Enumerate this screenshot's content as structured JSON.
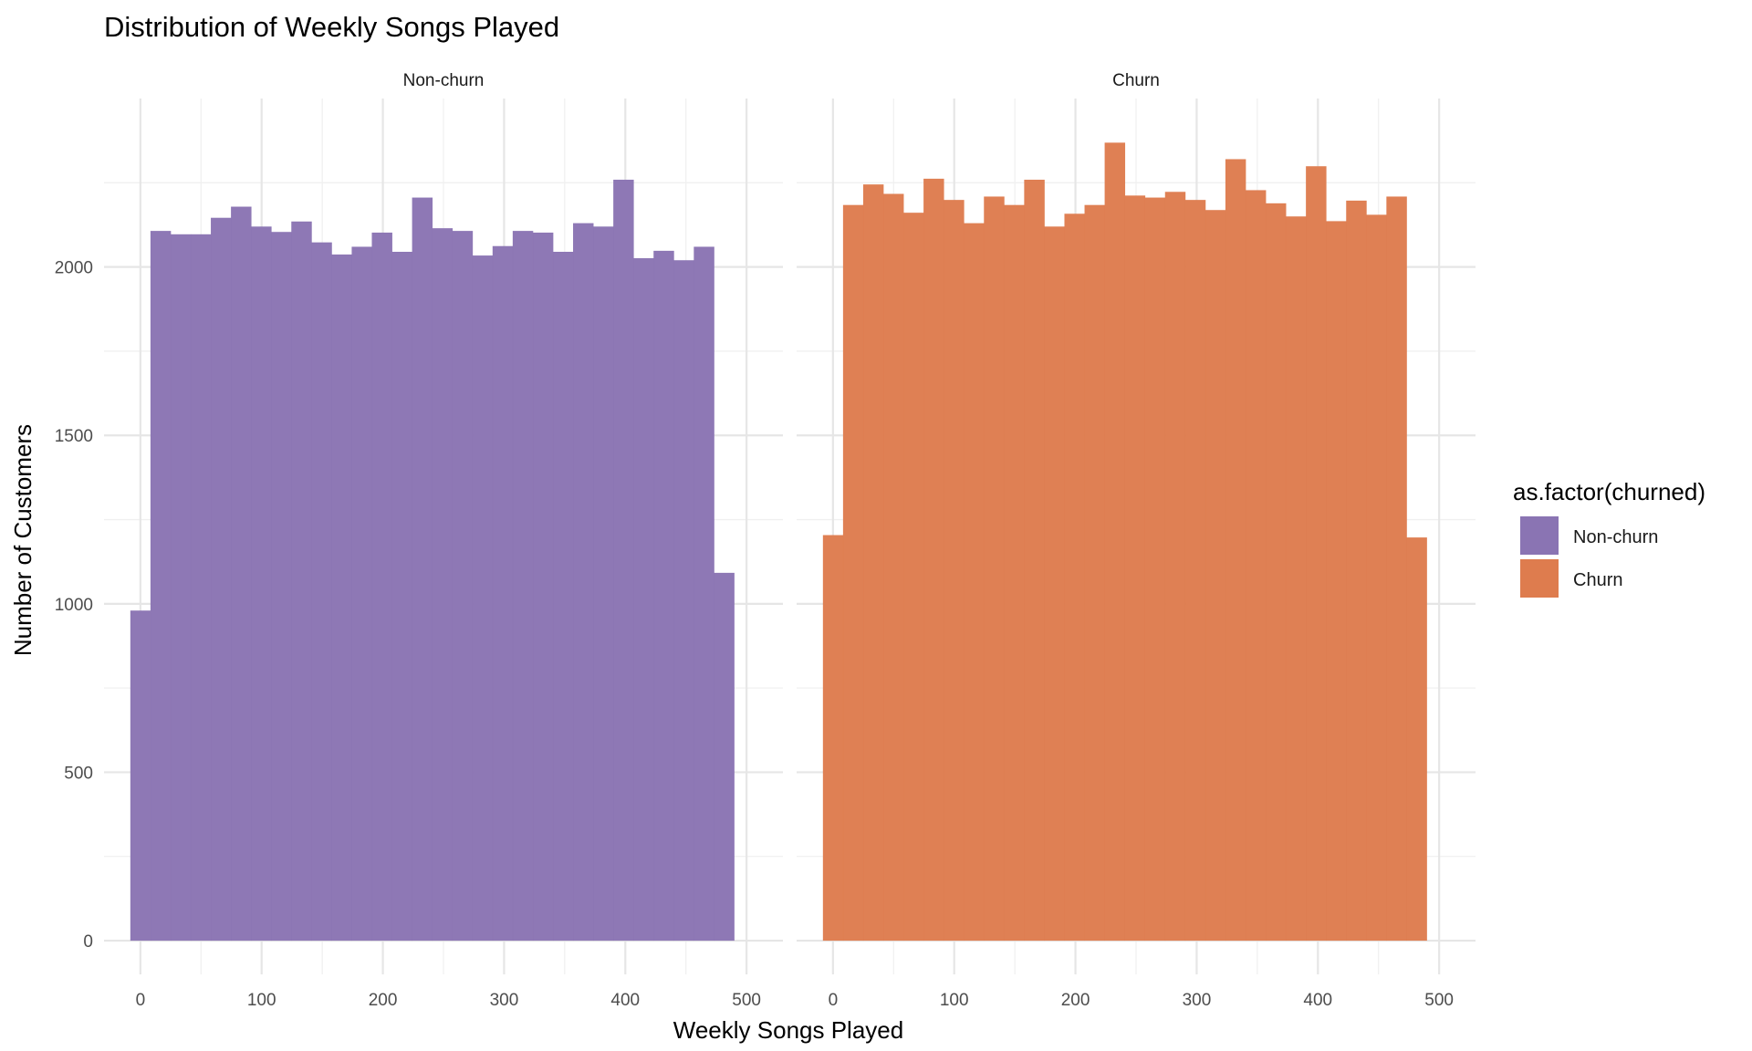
{
  "chart_data": {
    "type": "bar",
    "title": "Distribution of Weekly Songs Played",
    "xlabel": "Weekly Songs Played",
    "ylabel": "Number of Customers",
    "xlim": [
      -30,
      530
    ],
    "ylim": [
      -100,
      2500
    ],
    "x_ticks": [
      0,
      100,
      200,
      300,
      400,
      500
    ],
    "y_ticks": [
      0,
      500,
      1000,
      1500,
      2000
    ],
    "bin_width": 16.6,
    "bin_start": -8.3,
    "legend": {
      "title": "as.factor(churned)",
      "placement": "right",
      "entries": [
        {
          "label": "Non-churn",
          "color": "#8a74b3"
        },
        {
          "label": "Churn",
          "color": "#de7c4e"
        }
      ]
    },
    "facets": [
      {
        "strip": "Non-churn",
        "color": "#8a74b3",
        "values": [
          980,
          2107,
          2097,
          2097,
          2146,
          2179,
          2120,
          2104,
          2135,
          2073,
          2037,
          2060,
          2102,
          2045,
          2206,
          2115,
          2107,
          2034,
          2062,
          2107,
          2102,
          2045,
          2130,
          2120,
          2259,
          2026,
          2048,
          2020,
          2060,
          1092
        ]
      },
      {
        "strip": "Churn",
        "color": "#de7c4e",
        "values": [
          1204,
          2184,
          2245,
          2217,
          2161,
          2262,
          2199,
          2130,
          2209,
          2184,
          2259,
          2120,
          2158,
          2184,
          2369,
          2212,
          2206,
          2223,
          2199,
          2169,
          2320,
          2228,
          2189,
          2150,
          2299,
          2136,
          2197,
          2155,
          2209,
          1197
        ]
      }
    ]
  }
}
